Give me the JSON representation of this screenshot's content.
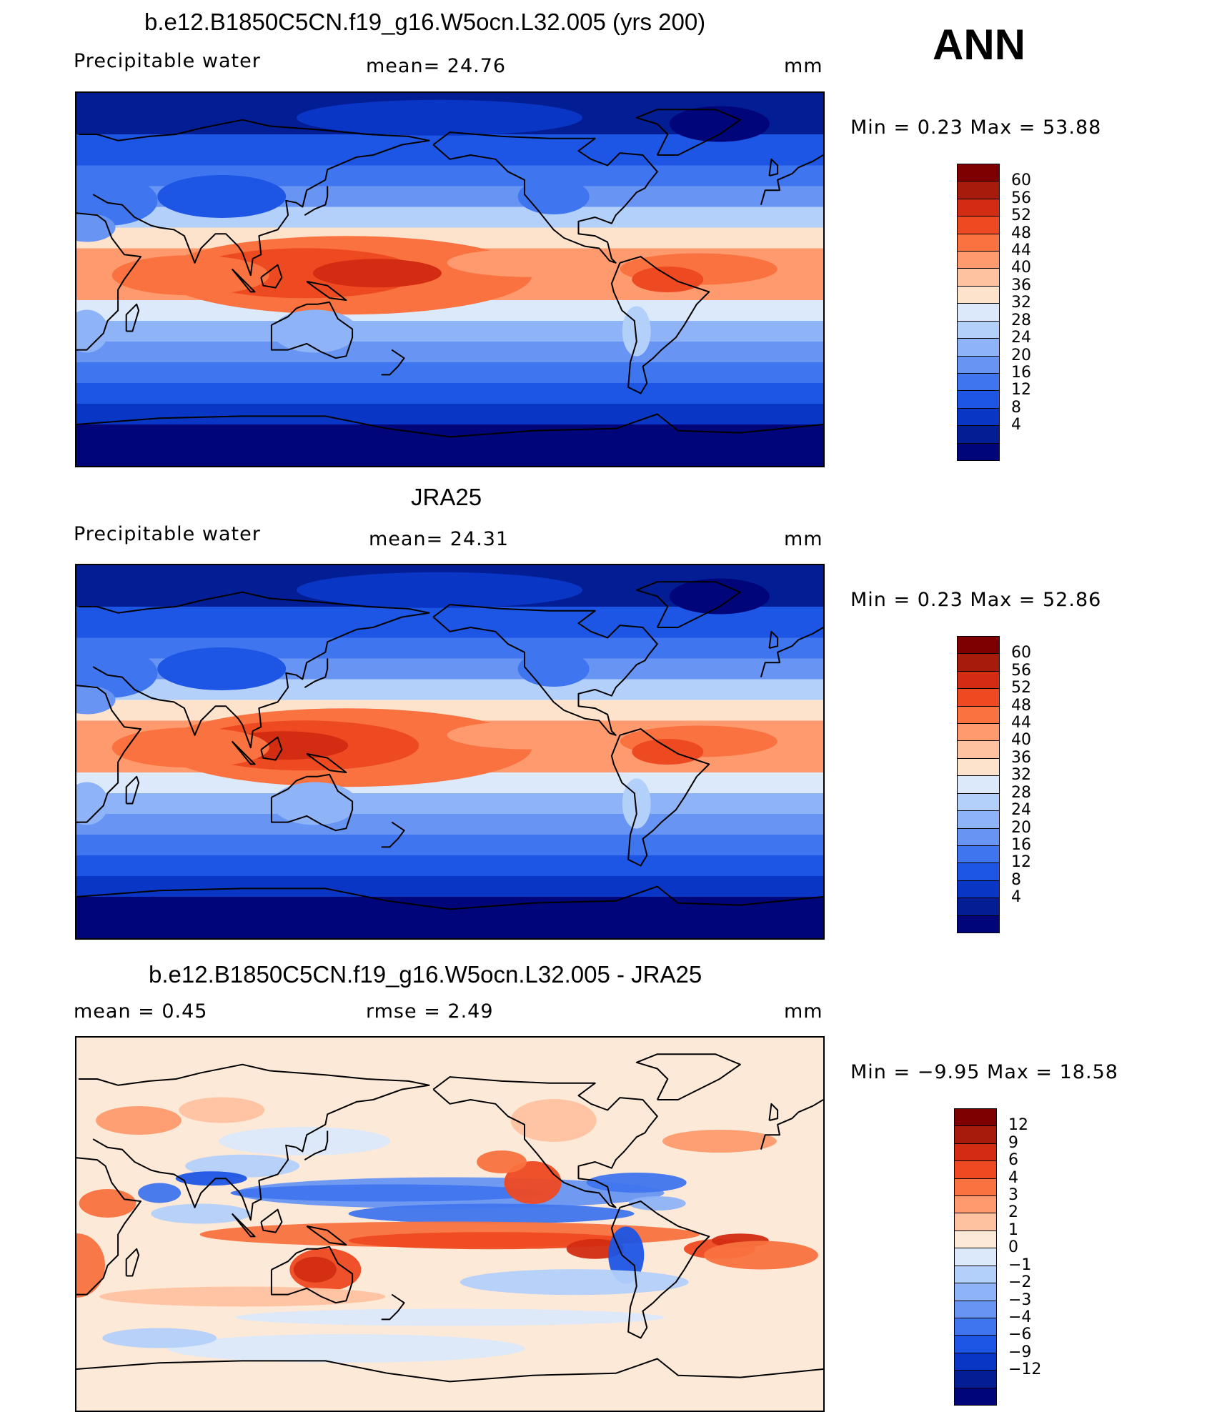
{
  "season": "ANN",
  "panels": [
    {
      "title": "b.e12.B1850C5CN.f19_g16.W5ocn.L32.005 (yrs 200)",
      "left_label": "Precipitable  water",
      "center_label": "mean=   24.76",
      "units": "mm",
      "minmax": "Min  =     0.23  Max  =    53.88",
      "map_type": "abs",
      "colorbar": {
        "colors": [
          "#7f0000",
          "#a61b0b",
          "#d22c12",
          "#ee4a22",
          "#f9723f",
          "#fe9a6e",
          "#ffc2a0",
          "#fde3cc",
          "#dbe9fa",
          "#b3d0fa",
          "#8fb3f7",
          "#6895f3",
          "#3f75ee",
          "#1d55e4",
          "#0a36c6",
          "#031e94",
          "#00057a"
        ],
        "labels": [
          "60",
          "56",
          "52",
          "48",
          "44",
          "40",
          "36",
          "32",
          "28",
          "24",
          "20",
          "16",
          "12",
          "8",
          "4"
        ]
      }
    },
    {
      "title": "JRA25",
      "left_label": "Precipitable  water",
      "center_label": "mean=   24.31",
      "units": "mm",
      "minmax": "Min  =     0.23  Max  =    52.86",
      "map_type": "abs2",
      "colorbar": {
        "colors": [
          "#7f0000",
          "#a61b0b",
          "#d22c12",
          "#ee4a22",
          "#f9723f",
          "#fe9a6e",
          "#ffc2a0",
          "#fde3cc",
          "#dbe9fa",
          "#b3d0fa",
          "#8fb3f7",
          "#6895f3",
          "#3f75ee",
          "#1d55e4",
          "#0a36c6",
          "#031e94",
          "#00057a"
        ],
        "labels": [
          "60",
          "56",
          "52",
          "48",
          "44",
          "40",
          "36",
          "32",
          "28",
          "24",
          "20",
          "16",
          "12",
          "8",
          "4"
        ]
      }
    },
    {
      "title": "b.e12.B1850C5CN.f19_g16.W5ocn.L32.005 - JRA25",
      "left_label": "mean  =     0.45",
      "center_label": "rmse  =     2.49",
      "units": "mm",
      "minmax": "Min  =   −9.95  Max  =    18.58",
      "map_type": "diff",
      "colorbar": {
        "colors": [
          "#7f0000",
          "#a61b0b",
          "#d22c12",
          "#ee4a22",
          "#f9723f",
          "#fe9a6e",
          "#ffc2a0",
          "#fde9d8",
          "#dbe9fa",
          "#b3d0fa",
          "#8fb3f7",
          "#6895f3",
          "#3f75ee",
          "#1d55e4",
          "#0a36c6",
          "#031e94",
          "#00057a"
        ],
        "labels": [
          "12",
          "9",
          "6",
          "4",
          "3",
          "2",
          "1",
          "0",
          "−1",
          "−2",
          "−3",
          "−4",
          "−6",
          "−9",
          "−12"
        ]
      }
    }
  ]
}
